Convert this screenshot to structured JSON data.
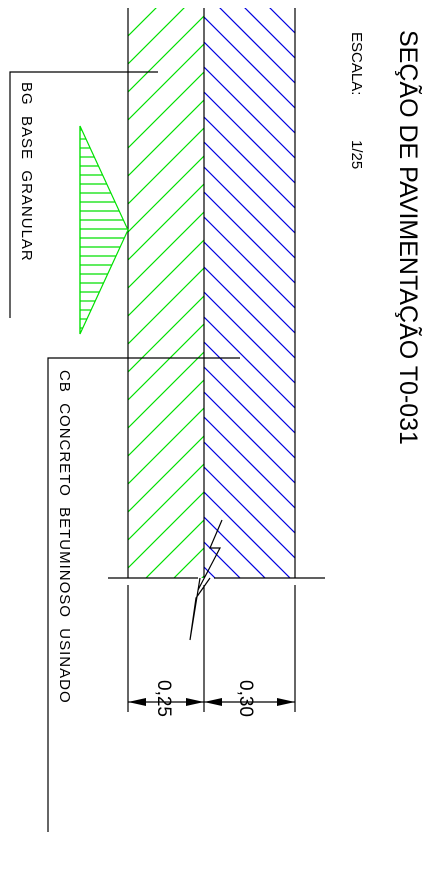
{
  "drawing": {
    "title": "SEÇÃO DE PAVIMENTAÇÃO T0-031",
    "scale_label": "ESCALA:",
    "scale_value": "1/25"
  },
  "layers": [
    {
      "code": "BG",
      "words": [
        "BASE",
        "GRANULAR"
      ],
      "hatch_color": "#00e000",
      "thickness": "0,25"
    },
    {
      "code": "CB",
      "words": [
        "CONCRETO",
        "BETUMINOSO",
        "USINADO"
      ],
      "hatch_color": "#0000e0",
      "thickness": "0,30"
    }
  ]
}
